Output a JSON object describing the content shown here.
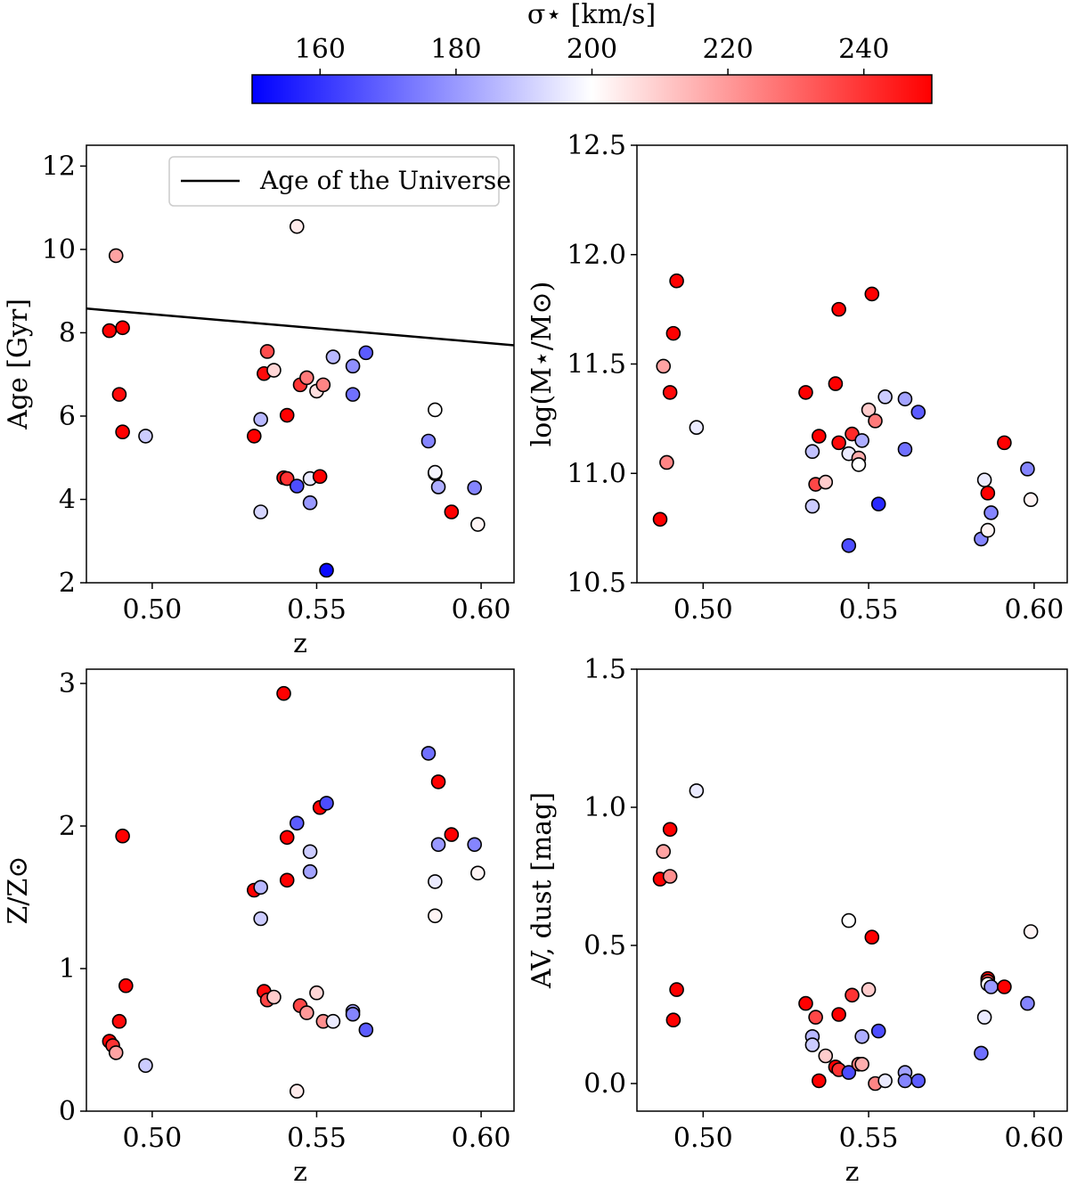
{
  "colorbar": {
    "label": "σ⋆ [km/s]",
    "range": [
      150,
      250
    ],
    "ticks": [
      "160",
      "180",
      "200",
      "220",
      "240"
    ],
    "colors": {
      "low": "#0000ff",
      "mid": "#ffffff",
      "high": "#ff0000"
    }
  },
  "legend": {
    "label": "Age of the Universe"
  },
  "chart_data": [
    {
      "type": "scatter",
      "id": "age",
      "xlabel": "z",
      "ylabel": "Age [Gyr]",
      "xlim": [
        0.48,
        0.61
      ],
      "ylim": [
        2,
        12.5
      ],
      "xticks": [
        "0.50",
        "0.55",
        "0.60"
      ],
      "yticks": [
        "2",
        "4",
        "6",
        "8",
        "10",
        "12"
      ],
      "line": {
        "name": "Age of the Universe",
        "x": [
          0.48,
          0.61
        ],
        "y": [
          8.58,
          7.7
        ]
      },
      "points": [
        {
          "x": 0.487,
          "y": 8.05,
          "sigma": 250
        },
        {
          "x": 0.489,
          "y": 9.85,
          "sigma": 218
        },
        {
          "x": 0.49,
          "y": 6.52,
          "sigma": 248
        },
        {
          "x": 0.491,
          "y": 5.62,
          "sigma": 250
        },
        {
          "x": 0.491,
          "y": 8.12,
          "sigma": 250
        },
        {
          "x": 0.498,
          "y": 5.52,
          "sigma": 190
        },
        {
          "x": 0.531,
          "y": 5.52,
          "sigma": 250
        },
        {
          "x": 0.533,
          "y": 5.92,
          "sigma": 186
        },
        {
          "x": 0.533,
          "y": 3.7,
          "sigma": 192
        },
        {
          "x": 0.534,
          "y": 7.02,
          "sigma": 248
        },
        {
          "x": 0.535,
          "y": 7.55,
          "sigma": 235
        },
        {
          "x": 0.537,
          "y": 7.1,
          "sigma": 208
        },
        {
          "x": 0.54,
          "y": 4.52,
          "sigma": 248
        },
        {
          "x": 0.541,
          "y": 6.02,
          "sigma": 250
        },
        {
          "x": 0.541,
          "y": 4.5,
          "sigma": 240
        },
        {
          "x": 0.544,
          "y": 10.55,
          "sigma": 204
        },
        {
          "x": 0.544,
          "y": 4.32,
          "sigma": 165
        },
        {
          "x": 0.545,
          "y": 6.75,
          "sigma": 240
        },
        {
          "x": 0.547,
          "y": 6.92,
          "sigma": 226
        },
        {
          "x": 0.548,
          "y": 4.5,
          "sigma": 196
        },
        {
          "x": 0.548,
          "y": 3.92,
          "sigma": 180
        },
        {
          "x": 0.55,
          "y": 6.6,
          "sigma": 206
        },
        {
          "x": 0.551,
          "y": 4.55,
          "sigma": 250
        },
        {
          "x": 0.552,
          "y": 6.75,
          "sigma": 224
        },
        {
          "x": 0.553,
          "y": 2.3,
          "sigma": 152
        },
        {
          "x": 0.555,
          "y": 7.42,
          "sigma": 186
        },
        {
          "x": 0.561,
          "y": 7.2,
          "sigma": 178
        },
        {
          "x": 0.561,
          "y": 6.52,
          "sigma": 172
        },
        {
          "x": 0.565,
          "y": 7.52,
          "sigma": 168
        },
        {
          "x": 0.584,
          "y": 5.4,
          "sigma": 176
        },
        {
          "x": 0.586,
          "y": 6.15,
          "sigma": 200
        },
        {
          "x": 0.586,
          "y": 4.62,
          "sigma": 200
        },
        {
          "x": 0.586,
          "y": 4.65,
          "sigma": 198
        },
        {
          "x": 0.587,
          "y": 4.3,
          "sigma": 184
        },
        {
          "x": 0.591,
          "y": 3.7,
          "sigma": 250
        },
        {
          "x": 0.598,
          "y": 4.28,
          "sigma": 176
        },
        {
          "x": 0.599,
          "y": 3.4,
          "sigma": 202
        }
      ]
    },
    {
      "type": "scatter",
      "id": "mass",
      "xlabel": "",
      "ylabel": "log(M⋆/M⊙)",
      "xlim": [
        0.48,
        0.61
      ],
      "ylim": [
        10.5,
        12.5
      ],
      "xticks": [
        "0.50",
        "0.55",
        "0.60"
      ],
      "yticks": [
        "10.5",
        "11.0",
        "11.5",
        "12.0",
        "12.5"
      ],
      "points": [
        {
          "x": 0.487,
          "y": 10.79,
          "sigma": 250
        },
        {
          "x": 0.488,
          "y": 11.49,
          "sigma": 218
        },
        {
          "x": 0.489,
          "y": 11.05,
          "sigma": 224
        },
        {
          "x": 0.49,
          "y": 11.37,
          "sigma": 248
        },
        {
          "x": 0.491,
          "y": 11.64,
          "sigma": 250
        },
        {
          "x": 0.492,
          "y": 11.88,
          "sigma": 250
        },
        {
          "x": 0.498,
          "y": 11.21,
          "sigma": 196
        },
        {
          "x": 0.531,
          "y": 11.37,
          "sigma": 250
        },
        {
          "x": 0.533,
          "y": 11.1,
          "sigma": 188
        },
        {
          "x": 0.533,
          "y": 10.85,
          "sigma": 190
        },
        {
          "x": 0.534,
          "y": 10.95,
          "sigma": 236
        },
        {
          "x": 0.535,
          "y": 11.17,
          "sigma": 250
        },
        {
          "x": 0.537,
          "y": 10.96,
          "sigma": 210
        },
        {
          "x": 0.54,
          "y": 11.41,
          "sigma": 250
        },
        {
          "x": 0.541,
          "y": 11.14,
          "sigma": 248
        },
        {
          "x": 0.541,
          "y": 11.75,
          "sigma": 250
        },
        {
          "x": 0.544,
          "y": 10.67,
          "sigma": 165
        },
        {
          "x": 0.544,
          "y": 11.09,
          "sigma": 196
        },
        {
          "x": 0.545,
          "y": 11.18,
          "sigma": 242
        },
        {
          "x": 0.547,
          "y": 11.07,
          "sigma": 216
        },
        {
          "x": 0.547,
          "y": 11.04,
          "sigma": 200
        },
        {
          "x": 0.548,
          "y": 11.15,
          "sigma": 184
        },
        {
          "x": 0.55,
          "y": 11.29,
          "sigma": 210
        },
        {
          "x": 0.551,
          "y": 11.82,
          "sigma": 250
        },
        {
          "x": 0.552,
          "y": 11.24,
          "sigma": 226
        },
        {
          "x": 0.553,
          "y": 10.86,
          "sigma": 158
        },
        {
          "x": 0.555,
          "y": 11.35,
          "sigma": 190
        },
        {
          "x": 0.561,
          "y": 11.34,
          "sigma": 182
        },
        {
          "x": 0.561,
          "y": 11.11,
          "sigma": 172
        },
        {
          "x": 0.565,
          "y": 11.28,
          "sigma": 168
        },
        {
          "x": 0.584,
          "y": 10.7,
          "sigma": 176
        },
        {
          "x": 0.585,
          "y": 10.97,
          "sigma": 196
        },
        {
          "x": 0.586,
          "y": 10.91,
          "sigma": 250
        },
        {
          "x": 0.586,
          "y": 10.74,
          "sigma": 202
        },
        {
          "x": 0.587,
          "y": 10.82,
          "sigma": 176
        },
        {
          "x": 0.591,
          "y": 11.14,
          "sigma": 250
        },
        {
          "x": 0.598,
          "y": 11.02,
          "sigma": 176
        },
        {
          "x": 0.599,
          "y": 10.88,
          "sigma": 202
        }
      ]
    },
    {
      "type": "scatter",
      "id": "metallicity",
      "xlabel": "z",
      "ylabel": "Z/Z⊙",
      "xlim": [
        0.48,
        0.61
      ],
      "ylim": [
        0,
        3.1
      ],
      "xticks": [
        "0.50",
        "0.55",
        "0.60"
      ],
      "yticks": [
        "0",
        "1",
        "2",
        "3"
      ],
      "points": [
        {
          "x": 0.487,
          "y": 0.49,
          "sigma": 250
        },
        {
          "x": 0.488,
          "y": 0.46,
          "sigma": 240
        },
        {
          "x": 0.489,
          "y": 0.41,
          "sigma": 218
        },
        {
          "x": 0.49,
          "y": 0.63,
          "sigma": 248
        },
        {
          "x": 0.491,
          "y": 1.93,
          "sigma": 250
        },
        {
          "x": 0.492,
          "y": 0.88,
          "sigma": 250
        },
        {
          "x": 0.498,
          "y": 0.32,
          "sigma": 190
        },
        {
          "x": 0.531,
          "y": 1.55,
          "sigma": 250
        },
        {
          "x": 0.533,
          "y": 1.57,
          "sigma": 186
        },
        {
          "x": 0.533,
          "y": 1.35,
          "sigma": 190
        },
        {
          "x": 0.534,
          "y": 0.84,
          "sigma": 248
        },
        {
          "x": 0.535,
          "y": 0.78,
          "sigma": 236
        },
        {
          "x": 0.537,
          "y": 0.8,
          "sigma": 210
        },
        {
          "x": 0.54,
          "y": 2.93,
          "sigma": 250
        },
        {
          "x": 0.541,
          "y": 1.92,
          "sigma": 250
        },
        {
          "x": 0.541,
          "y": 1.62,
          "sigma": 250
        },
        {
          "x": 0.544,
          "y": 2.02,
          "sigma": 168
        },
        {
          "x": 0.544,
          "y": 0.14,
          "sigma": 204
        },
        {
          "x": 0.545,
          "y": 0.74,
          "sigma": 236
        },
        {
          "x": 0.547,
          "y": 0.69,
          "sigma": 220
        },
        {
          "x": 0.548,
          "y": 1.82,
          "sigma": 190
        },
        {
          "x": 0.548,
          "y": 1.68,
          "sigma": 182
        },
        {
          "x": 0.55,
          "y": 0.83,
          "sigma": 208
        },
        {
          "x": 0.551,
          "y": 2.13,
          "sigma": 250
        },
        {
          "x": 0.552,
          "y": 0.63,
          "sigma": 222
        },
        {
          "x": 0.553,
          "y": 2.16,
          "sigma": 165
        },
        {
          "x": 0.555,
          "y": 0.63,
          "sigma": 196
        },
        {
          "x": 0.561,
          "y": 0.7,
          "sigma": 182
        },
        {
          "x": 0.561,
          "y": 0.68,
          "sigma": 176
        },
        {
          "x": 0.565,
          "y": 0.57,
          "sigma": 168
        },
        {
          "x": 0.584,
          "y": 2.51,
          "sigma": 172
        },
        {
          "x": 0.586,
          "y": 1.61,
          "sigma": 196
        },
        {
          "x": 0.586,
          "y": 1.37,
          "sigma": 202
        },
        {
          "x": 0.587,
          "y": 2.31,
          "sigma": 250
        },
        {
          "x": 0.587,
          "y": 1.87,
          "sigma": 180
        },
        {
          "x": 0.591,
          "y": 1.94,
          "sigma": 250
        },
        {
          "x": 0.598,
          "y": 1.87,
          "sigma": 176
        },
        {
          "x": 0.599,
          "y": 1.67,
          "sigma": 202
        }
      ]
    },
    {
      "type": "scatter",
      "id": "dust",
      "xlabel": "z",
      "ylabel": "AV, dust [mag]",
      "xlim": [
        0.48,
        0.61
      ],
      "ylim": [
        -0.1,
        1.5
      ],
      "xticks": [
        "0.50",
        "0.55",
        "0.60"
      ],
      "yticks": [
        "0.0",
        "0.5",
        "1.0",
        "1.5"
      ],
      "points": [
        {
          "x": 0.487,
          "y": 0.74,
          "sigma": 250
        },
        {
          "x": 0.488,
          "y": 0.84,
          "sigma": 218
        },
        {
          "x": 0.49,
          "y": 0.75,
          "sigma": 222
        },
        {
          "x": 0.49,
          "y": 0.92,
          "sigma": 250
        },
        {
          "x": 0.491,
          "y": 0.23,
          "sigma": 250
        },
        {
          "x": 0.492,
          "y": 0.34,
          "sigma": 250
        },
        {
          "x": 0.498,
          "y": 1.06,
          "sigma": 196
        },
        {
          "x": 0.531,
          "y": 0.29,
          "sigma": 250
        },
        {
          "x": 0.533,
          "y": 0.17,
          "sigma": 186
        },
        {
          "x": 0.533,
          "y": 0.14,
          "sigma": 190
        },
        {
          "x": 0.534,
          "y": 0.24,
          "sigma": 236
        },
        {
          "x": 0.535,
          "y": 0.01,
          "sigma": 250
        },
        {
          "x": 0.537,
          "y": 0.1,
          "sigma": 210
        },
        {
          "x": 0.54,
          "y": 0.06,
          "sigma": 250
        },
        {
          "x": 0.541,
          "y": 0.25,
          "sigma": 250
        },
        {
          "x": 0.541,
          "y": 0.05,
          "sigma": 240
        },
        {
          "x": 0.544,
          "y": 0.59,
          "sigma": 200
        },
        {
          "x": 0.544,
          "y": 0.04,
          "sigma": 165
        },
        {
          "x": 0.545,
          "y": 0.32,
          "sigma": 240
        },
        {
          "x": 0.547,
          "y": 0.07,
          "sigma": 224
        },
        {
          "x": 0.548,
          "y": 0.07,
          "sigma": 216
        },
        {
          "x": 0.548,
          "y": 0.17,
          "sigma": 184
        },
        {
          "x": 0.55,
          "y": 0.34,
          "sigma": 210
        },
        {
          "x": 0.551,
          "y": 0.53,
          "sigma": 250
        },
        {
          "x": 0.552,
          "y": 0.0,
          "sigma": 224
        },
        {
          "x": 0.553,
          "y": 0.19,
          "sigma": 165
        },
        {
          "x": 0.555,
          "y": 0.01,
          "sigma": 196
        },
        {
          "x": 0.561,
          "y": 0.04,
          "sigma": 182
        },
        {
          "x": 0.561,
          "y": 0.01,
          "sigma": 176
        },
        {
          "x": 0.565,
          "y": 0.01,
          "sigma": 168
        },
        {
          "x": 0.584,
          "y": 0.11,
          "sigma": 172
        },
        {
          "x": 0.585,
          "y": 0.24,
          "sigma": 196
        },
        {
          "x": 0.586,
          "y": 0.38,
          "sigma": 250
        },
        {
          "x": 0.586,
          "y": 0.37,
          "sigma": 236
        },
        {
          "x": 0.586,
          "y": 0.36,
          "sigma": 200
        },
        {
          "x": 0.587,
          "y": 0.35,
          "sigma": 180
        },
        {
          "x": 0.591,
          "y": 0.35,
          "sigma": 250
        },
        {
          "x": 0.598,
          "y": 0.29,
          "sigma": 176
        },
        {
          "x": 0.599,
          "y": 0.55,
          "sigma": 202
        }
      ]
    }
  ]
}
